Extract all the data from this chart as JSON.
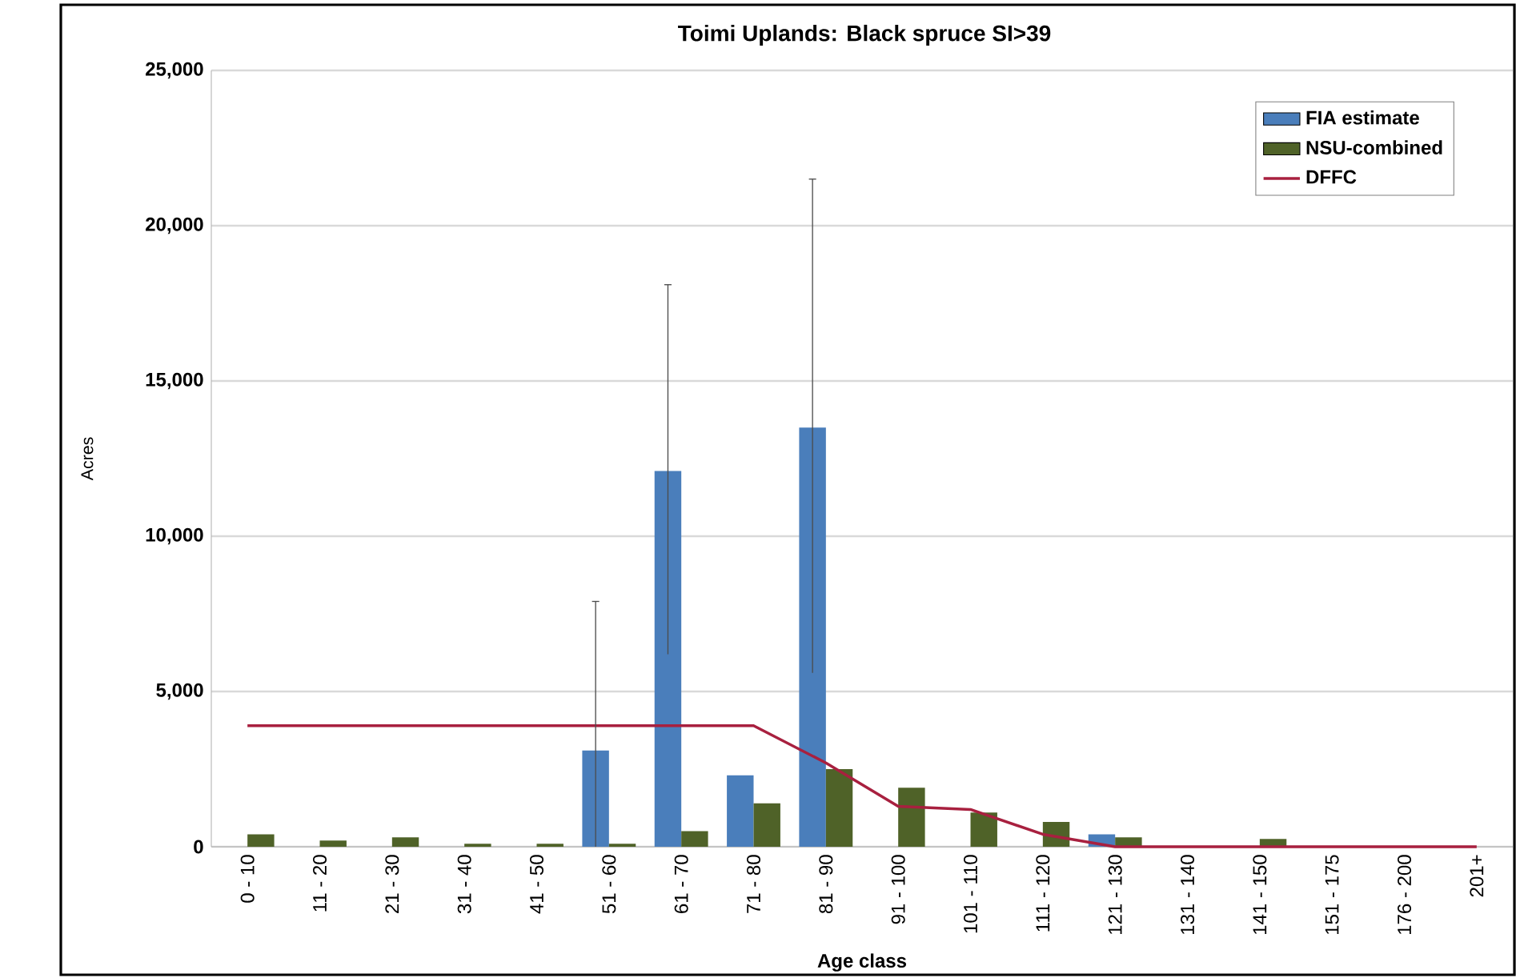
{
  "chart_data": {
    "type": "bar",
    "title": "Toimi Uplands: Black spruce SI>39",
    "xlabel": "Age class",
    "ylabel": "Acres",
    "categories": [
      "0 - 10",
      "11 - 20",
      "21 - 30",
      "31 - 40",
      "41 - 50",
      "51 - 60",
      "61 - 70",
      "71 - 80",
      "81 - 90",
      "91 - 100",
      "101 - 110",
      "111 - 120",
      "121 - 130",
      "131 - 140",
      "141 - 150",
      "151 - 175",
      "176 - 200",
      "201+"
    ],
    "series": [
      {
        "name": "FIA estimate",
        "color": "#4a7ebb",
        "values": [
          null,
          null,
          null,
          null,
          null,
          3100,
          12100,
          2300,
          13500,
          null,
          null,
          null,
          400,
          null,
          null,
          null,
          null,
          null
        ],
        "errors": [
          null,
          null,
          null,
          null,
          null,
          [
            0,
            7900
          ],
          [
            6200,
            18100
          ],
          null,
          [
            5600,
            21500
          ],
          null,
          null,
          null,
          null,
          null,
          null,
          null,
          null,
          null
        ]
      },
      {
        "name": "NSU-combined",
        "color": "#4f6228",
        "values": [
          400,
          200,
          300,
          100,
          100,
          100,
          500,
          1400,
          2500,
          1900,
          1100,
          800,
          300,
          null,
          250,
          null,
          null,
          null
        ]
      },
      {
        "name": "DFFC",
        "type": "line",
        "color": "#a8203f",
        "values": [
          3900,
          3900,
          3900,
          3900,
          3900,
          3900,
          3900,
          3900,
          2700,
          1300,
          1200,
          400,
          0,
          0,
          0,
          0,
          0,
          0
        ]
      }
    ],
    "ylim": [
      0,
      25000
    ],
    "yticks": [
      {
        "value": 0,
        "label": "0"
      },
      {
        "value": 5000,
        "label": "5,000"
      },
      {
        "value": 10000,
        "label": "10,000"
      },
      {
        "value": 15000,
        "label": "15,000"
      },
      {
        "value": 20000,
        "label": "20,000"
      },
      {
        "value": 25000,
        "label": "25,000"
      }
    ],
    "grid": "y",
    "legend": "top right"
  }
}
